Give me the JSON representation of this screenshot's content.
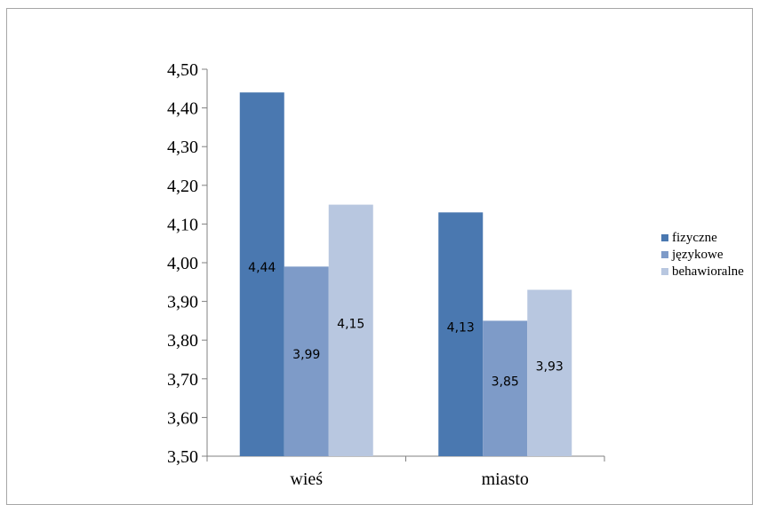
{
  "chart_data": {
    "type": "bar",
    "categories": [
      "wieś",
      "miasto"
    ],
    "series": [
      {
        "name": "fizyczne",
        "values": [
          4.44,
          4.13
        ],
        "labels": [
          "4,44",
          "4,13"
        ],
        "color": "#4a78b0"
      },
      {
        "name": "językowe",
        "values": [
          3.99,
          3.85
        ],
        "labels": [
          "3,99",
          "3,85"
        ],
        "color": "#7e9bc8"
      },
      {
        "name": "behawioralne",
        "values": [
          4.15,
          3.93
        ],
        "labels": [
          "4,15",
          "3,93"
        ],
        "color": "#b8c7e0"
      }
    ],
    "yticks": [
      "3,50",
      "3,60",
      "3,70",
      "3,80",
      "3,90",
      "4,00",
      "4,10",
      "4,20",
      "4,30",
      "4,40",
      "4,50"
    ],
    "ylim": [
      3.5,
      4.5
    ],
    "title": "",
    "xlabel": "",
    "ylabel": "",
    "legend_position": "right",
    "grid": false
  }
}
